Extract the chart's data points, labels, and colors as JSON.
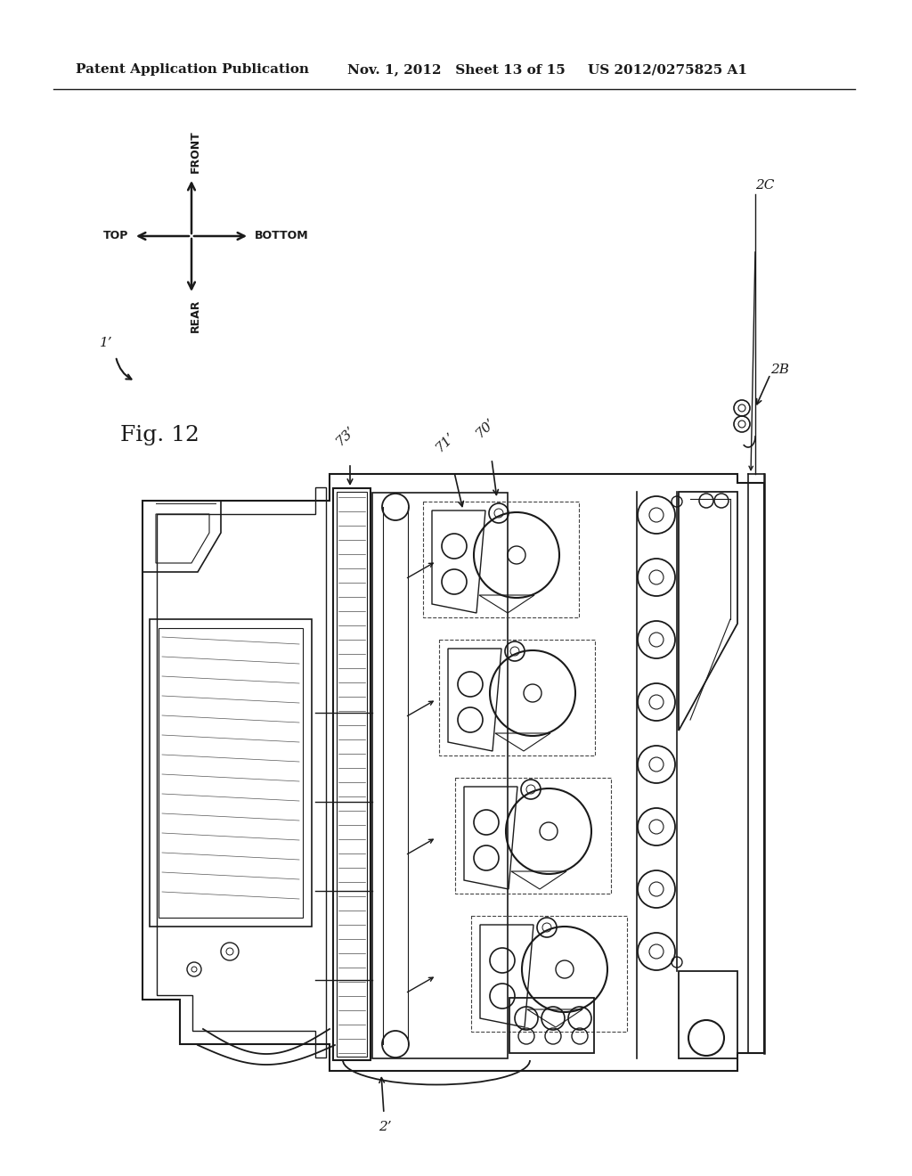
{
  "header_left": "Patent Application Publication",
  "header_mid": "Nov. 1, 2012   Sheet 13 of 15",
  "header_right": "US 2012/0275825 A1",
  "fig_label": "Fig. 12",
  "ref_1prime": "1’",
  "ref_2prime": "2’",
  "ref_2B": "2B",
  "ref_2C": "2C",
  "ref_70prime": "70’",
  "ref_71prime": "71’",
  "ref_73prime": "73’",
  "compass_labels": [
    "FRONT",
    "REAR",
    "TOP",
    "BOTTOM"
  ],
  "bg_color": "#ffffff",
  "line_color": "#1a1a1a",
  "text_color": "#1a1a1a",
  "header_fontsize": 11,
  "fig_label_fontsize": 18,
  "ref_fontsize": 11
}
